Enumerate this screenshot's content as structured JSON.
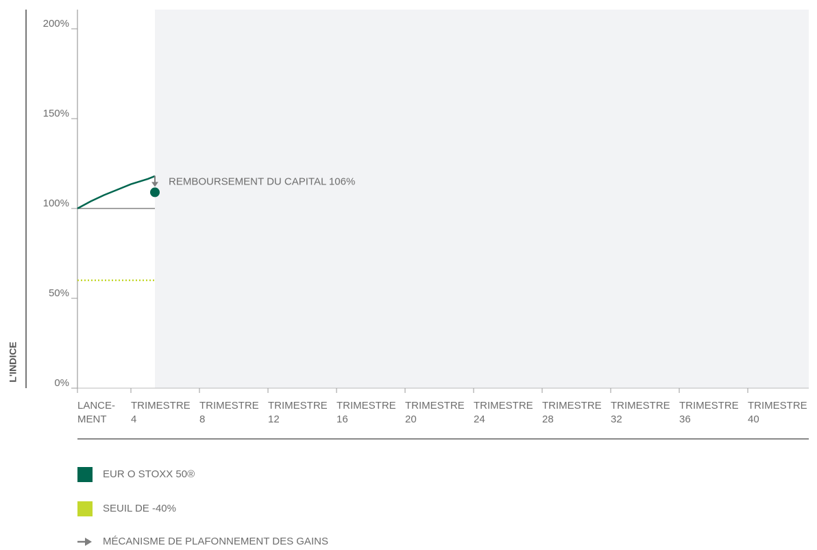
{
  "chart_data": {
    "type": "line",
    "ylabel": "L'INDICE",
    "ylim": [
      0,
      200
    ],
    "yticks": [
      {
        "value": 0,
        "label": "0%"
      },
      {
        "value": 50,
        "label": "50%"
      },
      {
        "value": 100,
        "label": "100%"
      },
      {
        "value": 150,
        "label": "150%"
      },
      {
        "value": 200,
        "label": "200%"
      }
    ],
    "reference_line": 100,
    "xticks": [
      {
        "value": 0,
        "label": [
          "LANCE-",
          "MENT"
        ]
      },
      {
        "value": 4,
        "label": [
          "TRIMESTRE",
          "4"
        ]
      },
      {
        "value": 8,
        "label": [
          "TRIMESTRE",
          "8"
        ]
      },
      {
        "value": 12,
        "label": [
          "TRIMESTRE",
          "12"
        ]
      },
      {
        "value": 16,
        "label": [
          "TRIMESTRE",
          "16"
        ]
      },
      {
        "value": 20,
        "label": [
          "TRIMESTRE",
          "20"
        ]
      },
      {
        "value": 24,
        "label": [
          "TRIMESTRE",
          "24"
        ]
      },
      {
        "value": 28,
        "label": [
          "TRIMESTRE",
          "28"
        ]
      },
      {
        "value": 32,
        "label": [
          "TRIMESTRE",
          "32"
        ]
      },
      {
        "value": 36,
        "label": [
          "TRIMESTRE",
          "36"
        ]
      },
      {
        "value": 40,
        "label": [
          "TRIMESTRE",
          "40"
        ]
      }
    ],
    "series": [
      {
        "name": "EUR O STOXX 50®",
        "color": "#00664f",
        "style": "solid",
        "x": [
          0,
          1,
          2,
          3,
          4,
          5,
          5.4
        ],
        "values": [
          100,
          104,
          107.5,
          110.5,
          113.5,
          116.5,
          118
        ]
      },
      {
        "name": "SEUIL DE -40%",
        "color": "#c4d82e",
        "style": "dotted",
        "x": [
          0,
          5.4
        ],
        "values": [
          60,
          60
        ]
      }
    ],
    "annotation": {
      "text": "REMBOURSEMENT DU CAPITAL 106%",
      "x": 5.4,
      "value": 109,
      "color": "#00664f"
    },
    "cap_legend": {
      "text": "MÉCANISME DE PLAFONNEMENT DES GAINS",
      "color": "#7f7f7f"
    }
  }
}
